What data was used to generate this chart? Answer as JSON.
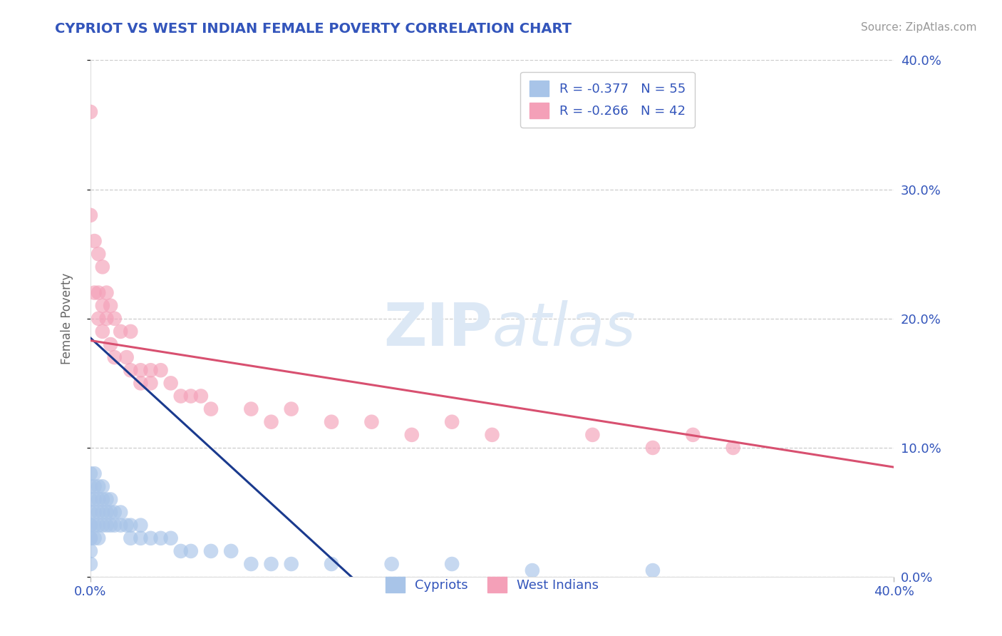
{
  "title": "CYPRIOT VS WEST INDIAN FEMALE POVERTY CORRELATION CHART",
  "source": "Source: ZipAtlas.com",
  "ylabel": "Female Poverty",
  "xmin": 0.0,
  "xmax": 0.4,
  "ymin": 0.0,
  "ymax": 0.4,
  "yticks": [
    0.0,
    0.1,
    0.2,
    0.3,
    0.4
  ],
  "right_ytick_labels": [
    "0.0%",
    "10.0%",
    "20.0%",
    "30.0%",
    "40.0%"
  ],
  "cypriot_R": -0.377,
  "cypriot_N": 55,
  "westindian_R": -0.266,
  "westindian_N": 42,
  "cypriot_color": "#a8c4e8",
  "westindian_color": "#f4a0b8",
  "cypriot_line_color": "#1a3a8e",
  "westindian_line_color": "#d85070",
  "text_color": "#3355bb",
  "source_color": "#999999",
  "title_color": "#3355bb",
  "grid_color": "#cccccc",
  "watermark_color": "#dce8f5",
  "cypriot_x": [
    0.0,
    0.0,
    0.0,
    0.0,
    0.0,
    0.0,
    0.0,
    0.0,
    0.0,
    0.0,
    0.002,
    0.002,
    0.002,
    0.002,
    0.002,
    0.002,
    0.004,
    0.004,
    0.004,
    0.004,
    0.004,
    0.006,
    0.006,
    0.006,
    0.006,
    0.008,
    0.008,
    0.008,
    0.01,
    0.01,
    0.01,
    0.012,
    0.012,
    0.015,
    0.015,
    0.018,
    0.02,
    0.02,
    0.025,
    0.025,
    0.03,
    0.035,
    0.04,
    0.045,
    0.05,
    0.06,
    0.07,
    0.08,
    0.09,
    0.1,
    0.12,
    0.15,
    0.18,
    0.22,
    0.28
  ],
  "cypriot_y": [
    0.08,
    0.07,
    0.06,
    0.05,
    0.04,
    0.04,
    0.03,
    0.03,
    0.02,
    0.01,
    0.08,
    0.07,
    0.06,
    0.05,
    0.04,
    0.03,
    0.07,
    0.06,
    0.05,
    0.04,
    0.03,
    0.07,
    0.06,
    0.05,
    0.04,
    0.06,
    0.05,
    0.04,
    0.06,
    0.05,
    0.04,
    0.05,
    0.04,
    0.05,
    0.04,
    0.04,
    0.04,
    0.03,
    0.04,
    0.03,
    0.03,
    0.03,
    0.03,
    0.02,
    0.02,
    0.02,
    0.02,
    0.01,
    0.01,
    0.01,
    0.01,
    0.01,
    0.01,
    0.005,
    0.005
  ],
  "westindian_x": [
    0.0,
    0.0,
    0.002,
    0.002,
    0.004,
    0.004,
    0.004,
    0.006,
    0.006,
    0.006,
    0.008,
    0.008,
    0.01,
    0.01,
    0.012,
    0.012,
    0.015,
    0.018,
    0.02,
    0.02,
    0.025,
    0.025,
    0.03,
    0.03,
    0.035,
    0.04,
    0.045,
    0.05,
    0.055,
    0.06,
    0.08,
    0.09,
    0.1,
    0.12,
    0.14,
    0.16,
    0.18,
    0.2,
    0.25,
    0.28,
    0.3,
    0.32
  ],
  "westindian_y": [
    0.36,
    0.28,
    0.26,
    0.22,
    0.25,
    0.22,
    0.2,
    0.24,
    0.21,
    0.19,
    0.22,
    0.2,
    0.21,
    0.18,
    0.2,
    0.17,
    0.19,
    0.17,
    0.19,
    0.16,
    0.16,
    0.15,
    0.16,
    0.15,
    0.16,
    0.15,
    0.14,
    0.14,
    0.14,
    0.13,
    0.13,
    0.12,
    0.13,
    0.12,
    0.12,
    0.11,
    0.12,
    0.11,
    0.11,
    0.1,
    0.11,
    0.1
  ],
  "cypriot_line_x0": 0.0,
  "cypriot_line_y0": 0.185,
  "cypriot_line_x1": 0.13,
  "cypriot_line_y1": 0.0,
  "westindian_line_x0": 0.0,
  "westindian_line_y0": 0.183,
  "westindian_line_x1": 0.4,
  "westindian_line_y1": 0.085
}
